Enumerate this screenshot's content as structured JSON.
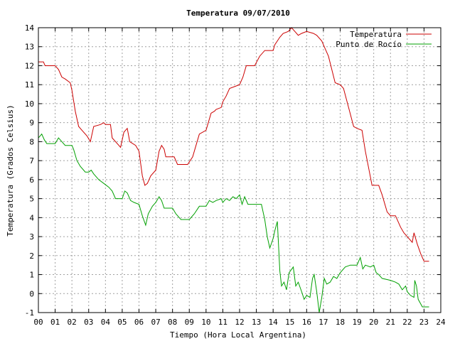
{
  "chart_data": {
    "type": "line",
    "title": "Temperatura 09/07/2010",
    "xlabel": "Tiempo (Hora Local Argentina)",
    "ylabel": "Temperatura (Grados Celsius)",
    "xlim": [
      0,
      24
    ],
    "ylim": [
      -1,
      14
    ],
    "grid": true,
    "legend_position": "top-right",
    "x_tick_labels": [
      "00",
      "01",
      "02",
      "03",
      "04",
      "05",
      "06",
      "07",
      "08",
      "09",
      "10",
      "11",
      "12",
      "13",
      "14",
      "15",
      "16",
      "17",
      "18",
      "19",
      "20",
      "21",
      "22",
      "23",
      "24"
    ],
    "y_ticks": [
      -1,
      0,
      1,
      2,
      3,
      4,
      5,
      6,
      7,
      8,
      9,
      10,
      11,
      12,
      13,
      14
    ],
    "series": [
      {
        "name": "Temperatura",
        "color": "#cc0000",
        "points": [
          [
            0.0,
            12.2
          ],
          [
            0.3,
            12.2
          ],
          [
            0.4,
            12.0
          ],
          [
            1.0,
            12.0
          ],
          [
            1.2,
            11.8
          ],
          [
            1.4,
            11.4
          ],
          [
            1.6,
            11.3
          ],
          [
            1.9,
            11.1
          ],
          [
            2.0,
            10.7
          ],
          [
            2.2,
            9.6
          ],
          [
            2.4,
            8.8
          ],
          [
            2.6,
            8.6
          ],
          [
            2.9,
            8.3
          ],
          [
            3.1,
            8.0
          ],
          [
            3.3,
            8.8
          ],
          [
            3.7,
            8.9
          ],
          [
            3.9,
            9.0
          ],
          [
            4.0,
            8.9
          ],
          [
            4.3,
            8.9
          ],
          [
            4.4,
            8.2
          ],
          [
            4.8,
            7.8
          ],
          [
            4.9,
            7.7
          ],
          [
            5.1,
            8.5
          ],
          [
            5.3,
            8.7
          ],
          [
            5.45,
            8.0
          ],
          [
            5.8,
            7.8
          ],
          [
            6.0,
            7.5
          ],
          [
            6.2,
            6.2
          ],
          [
            6.35,
            5.7
          ],
          [
            6.5,
            5.8
          ],
          [
            6.7,
            6.2
          ],
          [
            7.0,
            6.5
          ],
          [
            7.2,
            7.5
          ],
          [
            7.35,
            7.8
          ],
          [
            7.5,
            7.6
          ],
          [
            7.6,
            7.2
          ],
          [
            8.1,
            7.2
          ],
          [
            8.3,
            6.8
          ],
          [
            8.9,
            6.8
          ],
          [
            9.2,
            7.2
          ],
          [
            9.4,
            7.8
          ],
          [
            9.6,
            8.4
          ],
          [
            10.0,
            8.6
          ],
          [
            10.1,
            8.9
          ],
          [
            10.3,
            9.5
          ],
          [
            10.5,
            9.6
          ],
          [
            10.6,
            9.7
          ],
          [
            10.9,
            9.8
          ],
          [
            11.0,
            10.1
          ],
          [
            11.2,
            10.4
          ],
          [
            11.4,
            10.8
          ],
          [
            11.7,
            10.9
          ],
          [
            12.0,
            11.0
          ],
          [
            12.2,
            11.4
          ],
          [
            12.4,
            12.0
          ],
          [
            12.9,
            12.0
          ],
          [
            13.2,
            12.5
          ],
          [
            13.5,
            12.8
          ],
          [
            14.0,
            12.8
          ],
          [
            14.1,
            13.1
          ],
          [
            14.4,
            13.5
          ],
          [
            14.6,
            13.7
          ],
          [
            14.9,
            13.8
          ],
          [
            15.1,
            14.0
          ],
          [
            15.3,
            13.8
          ],
          [
            15.5,
            13.6
          ],
          [
            15.7,
            13.7
          ],
          [
            16.0,
            13.8
          ],
          [
            16.4,
            13.7
          ],
          [
            16.6,
            13.6
          ],
          [
            16.9,
            13.3
          ],
          [
            17.1,
            12.9
          ],
          [
            17.3,
            12.5
          ],
          [
            17.5,
            11.8
          ],
          [
            17.7,
            11.1
          ],
          [
            18.0,
            11.0
          ],
          [
            18.2,
            10.8
          ],
          [
            18.5,
            9.8
          ],
          [
            18.8,
            8.8
          ],
          [
            19.0,
            8.7
          ],
          [
            19.3,
            8.6
          ],
          [
            19.5,
            7.5
          ],
          [
            19.7,
            6.6
          ],
          [
            19.9,
            5.7
          ],
          [
            20.0,
            5.7
          ],
          [
            20.3,
            5.7
          ],
          [
            20.5,
            5.2
          ],
          [
            20.8,
            4.3
          ],
          [
            21.0,
            4.1
          ],
          [
            21.3,
            4.1
          ],
          [
            21.6,
            3.5
          ],
          [
            21.8,
            3.2
          ],
          [
            22.0,
            3.0
          ],
          [
            22.3,
            2.7
          ],
          [
            22.4,
            3.2
          ],
          [
            22.6,
            2.6
          ],
          [
            22.8,
            2.1
          ],
          [
            23.0,
            1.7
          ],
          [
            23.3,
            1.7
          ]
        ]
      },
      {
        "name": "Punto de Rocío",
        "color": "#00a000",
        "points": [
          [
            0.0,
            8.2
          ],
          [
            0.1,
            8.3
          ],
          [
            0.2,
            8.4
          ],
          [
            0.35,
            8.1
          ],
          [
            0.5,
            7.9
          ],
          [
            1.0,
            7.9
          ],
          [
            1.2,
            8.2
          ],
          [
            1.4,
            8.0
          ],
          [
            1.6,
            7.8
          ],
          [
            2.0,
            7.8
          ],
          [
            2.1,
            7.6
          ],
          [
            2.3,
            7.0
          ],
          [
            2.5,
            6.7
          ],
          [
            2.8,
            6.4
          ],
          [
            3.0,
            6.4
          ],
          [
            3.15,
            6.5
          ],
          [
            3.3,
            6.3
          ],
          [
            3.6,
            6.0
          ],
          [
            3.9,
            5.8
          ],
          [
            4.2,
            5.6
          ],
          [
            4.4,
            5.4
          ],
          [
            4.6,
            5.0
          ],
          [
            5.0,
            5.0
          ],
          [
            5.15,
            5.4
          ],
          [
            5.3,
            5.3
          ],
          [
            5.5,
            4.9
          ],
          [
            5.7,
            4.8
          ],
          [
            6.0,
            4.7
          ],
          [
            6.2,
            4.1
          ],
          [
            6.4,
            3.6
          ],
          [
            6.55,
            4.2
          ],
          [
            6.8,
            4.6
          ],
          [
            7.0,
            4.8
          ],
          [
            7.2,
            5.1
          ],
          [
            7.35,
            4.9
          ],
          [
            7.5,
            4.5
          ],
          [
            8.0,
            4.5
          ],
          [
            8.2,
            4.2
          ],
          [
            8.5,
            3.9
          ],
          [
            9.0,
            3.9
          ],
          [
            9.3,
            4.2
          ],
          [
            9.6,
            4.6
          ],
          [
            10.0,
            4.6
          ],
          [
            10.2,
            4.9
          ],
          [
            10.4,
            4.8
          ],
          [
            10.6,
            4.9
          ],
          [
            10.9,
            5.0
          ],
          [
            11.0,
            4.8
          ],
          [
            11.2,
            5.0
          ],
          [
            11.4,
            4.9
          ],
          [
            11.6,
            5.1
          ],
          [
            11.8,
            5.0
          ],
          [
            12.0,
            5.2
          ],
          [
            12.15,
            4.7
          ],
          [
            12.3,
            5.1
          ],
          [
            12.5,
            4.7
          ],
          [
            12.8,
            4.7
          ],
          [
            13.3,
            4.7
          ],
          [
            13.5,
            3.9
          ],
          [
            13.65,
            3.0
          ],
          [
            13.8,
            2.4
          ],
          [
            14.0,
            2.9
          ],
          [
            14.1,
            3.3
          ],
          [
            14.25,
            3.8
          ],
          [
            14.4,
            1.2
          ],
          [
            14.5,
            0.4
          ],
          [
            14.65,
            0.6
          ],
          [
            14.8,
            0.2
          ],
          [
            14.95,
            1.1
          ],
          [
            15.2,
            1.4
          ],
          [
            15.35,
            0.4
          ],
          [
            15.5,
            0.6
          ],
          [
            15.7,
            0.1
          ],
          [
            15.85,
            -0.3
          ],
          [
            16.0,
            -0.1
          ],
          [
            16.2,
            -0.2
          ],
          [
            16.35,
            0.8
          ],
          [
            16.45,
            1.0
          ],
          [
            16.6,
            0.1
          ],
          [
            16.75,
            -1.0
          ],
          [
            16.9,
            -0.2
          ],
          [
            17.05,
            0.8
          ],
          [
            17.2,
            0.5
          ],
          [
            17.4,
            0.6
          ],
          [
            17.6,
            0.9
          ],
          [
            17.8,
            0.8
          ],
          [
            18.0,
            1.1
          ],
          [
            18.3,
            1.4
          ],
          [
            18.6,
            1.5
          ],
          [
            19.0,
            1.5
          ],
          [
            19.2,
            1.9
          ],
          [
            19.35,
            1.3
          ],
          [
            19.5,
            1.5
          ],
          [
            19.8,
            1.4
          ],
          [
            20.0,
            1.5
          ],
          [
            20.15,
            1.1
          ],
          [
            20.3,
            1.0
          ],
          [
            20.5,
            0.8
          ],
          [
            21.0,
            0.7
          ],
          [
            21.3,
            0.6
          ],
          [
            21.5,
            0.5
          ],
          [
            21.7,
            0.2
          ],
          [
            21.9,
            0.4
          ],
          [
            22.0,
            0.1
          ],
          [
            22.2,
            -0.1
          ],
          [
            22.4,
            -0.2
          ],
          [
            22.45,
            0.7
          ],
          [
            22.55,
            0.4
          ],
          [
            22.65,
            -0.3
          ],
          [
            22.9,
            -0.7
          ],
          [
            23.3,
            -0.7
          ]
        ]
      }
    ]
  }
}
